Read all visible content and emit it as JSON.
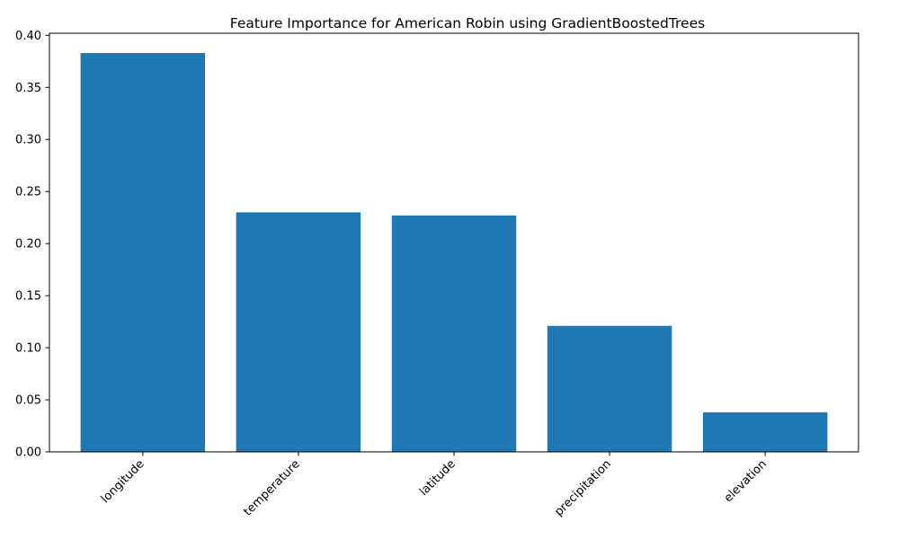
{
  "chart_data": {
    "type": "bar",
    "title": "Feature Importance for American Robin using GradientBoostedTrees",
    "xlabel": "",
    "ylabel": "",
    "categories": [
      "longitude",
      "temperature",
      "latitude",
      "precipitation",
      "elevation"
    ],
    "values": [
      0.383,
      0.23,
      0.227,
      0.121,
      0.038
    ],
    "ylim": [
      0,
      0.402
    ],
    "yticks": [
      "0.00",
      "0.05",
      "0.10",
      "0.15",
      "0.20",
      "0.25",
      "0.30",
      "0.35",
      "0.40"
    ],
    "grid": false,
    "legend": "none",
    "bar_color": "#1f77b4",
    "xtick_rotation": "45"
  }
}
